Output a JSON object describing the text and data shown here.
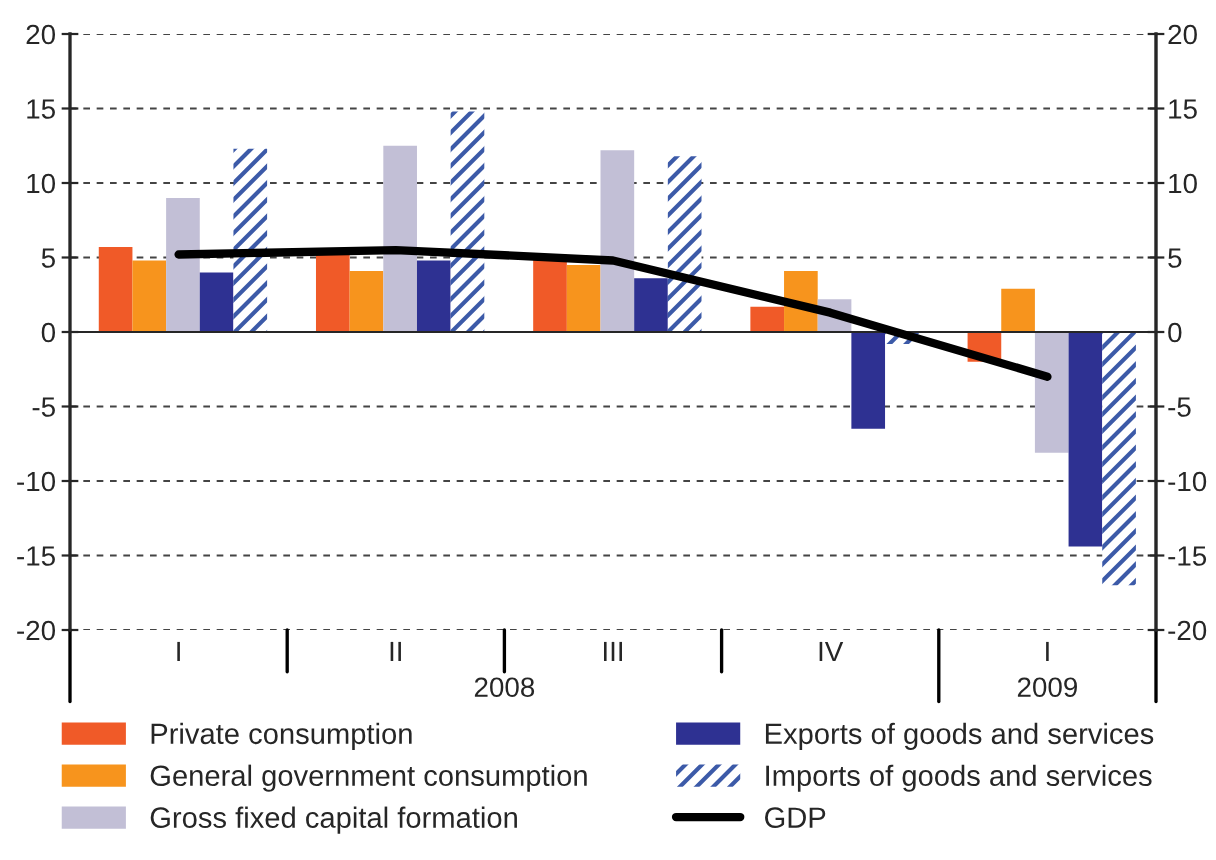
{
  "chart_data": {
    "type": "bar",
    "categories": [
      "I",
      "II",
      "III",
      "IV",
      "I"
    ],
    "series": [
      {
        "name": "Private consumption",
        "color": "#f05a28",
        "values": [
          5.7,
          5.2,
          5.2,
          1.7,
          -2.0
        ]
      },
      {
        "name": "General government consumption",
        "color": "#f7941d",
        "values": [
          4.8,
          4.1,
          4.5,
          4.1,
          2.9
        ]
      },
      {
        "name": "Gross fixed capital formation",
        "color": "#c2bfd6",
        "values": [
          9.0,
          12.5,
          12.2,
          2.2,
          -8.1
        ]
      },
      {
        "name": "Exports of goods and services",
        "color": "#2e3192",
        "values": [
          4.0,
          4.8,
          3.6,
          -6.5,
          -14.4
        ]
      },
      {
        "name": "Imports of goods and services",
        "color": "#3c5aa8",
        "values": [
          12.3,
          14.8,
          11.8,
          -0.8,
          -17.0
        ]
      },
      {
        "name": "GDP",
        "color": "#000000",
        "type": "line",
        "values": [
          5.2,
          5.5,
          4.8,
          1.3,
          -3.0
        ]
      }
    ],
    "ylim": [
      -20,
      20
    ],
    "yticks": [
      -20,
      -15,
      -10,
      -5,
      0,
      5,
      10,
      15,
      20
    ],
    "y2lim": [
      -20,
      20
    ],
    "y2ticks": [
      -20,
      -15,
      -10,
      -5,
      0,
      5,
      10,
      15,
      20
    ],
    "annotations": [
      "2008",
      "2009"
    ],
    "grid": "y",
    "legend": "bottom"
  }
}
